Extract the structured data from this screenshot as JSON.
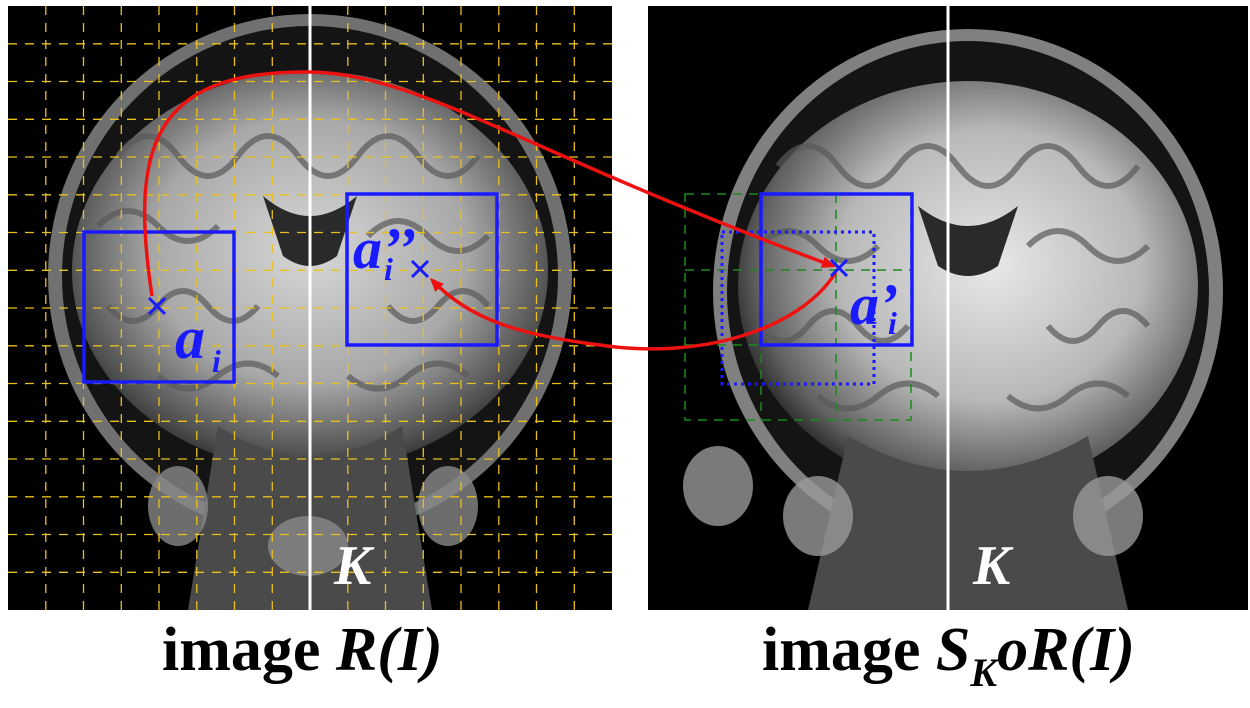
{
  "left_panel": {
    "caption_prefix": "image ",
    "caption_formula": "R(I)",
    "point_label_main": "a",
    "point_label_sub": "i",
    "second_point_label_main": "a’’",
    "second_point_label_sub": "i",
    "center_label": "K"
  },
  "right_panel": {
    "caption_prefix": "image ",
    "caption_s": "S",
    "caption_sub": "K",
    "caption_rest": "oR(I)",
    "point_label_main": "a’",
    "point_label_sub": "i",
    "center_label": "K"
  },
  "colors": {
    "box": "#1a1aff",
    "arrow": "#ee1111",
    "grid": "#e8c020",
    "green_grid": "#1a8a1a",
    "midline": "#ffffff",
    "label": "#1a1aff"
  }
}
